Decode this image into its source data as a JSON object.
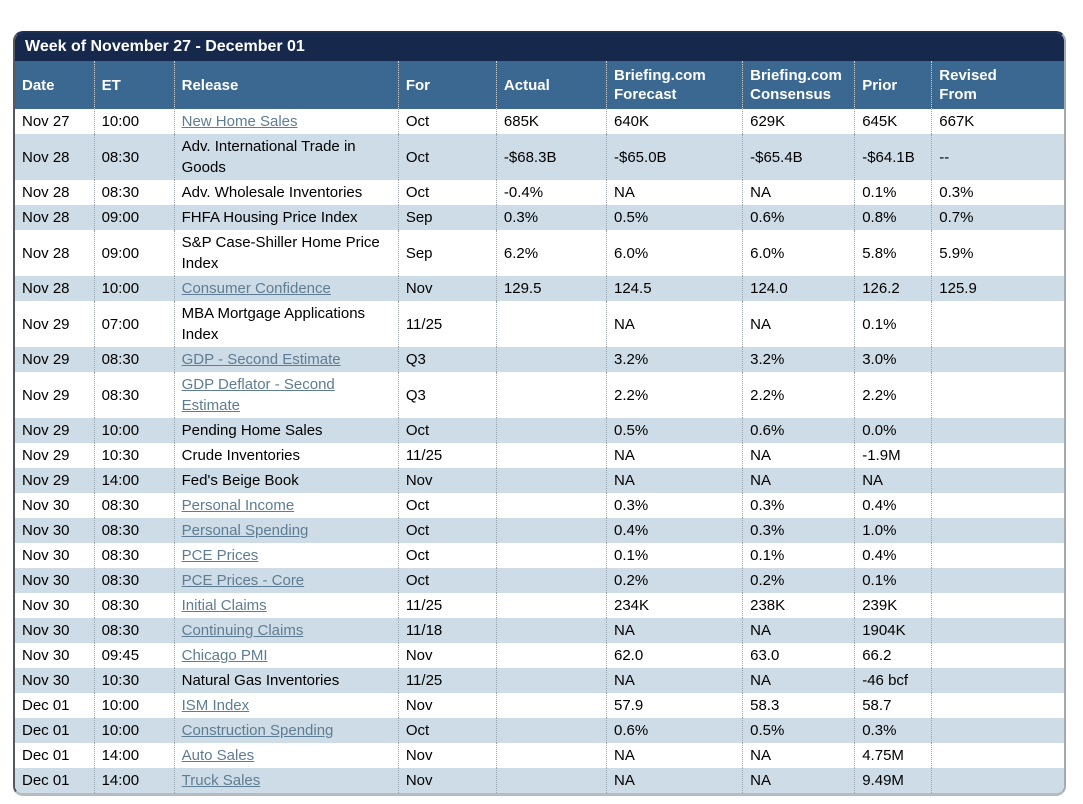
{
  "title": "Week of November 27 - December 01",
  "colors": {
    "title-bg": "#16294d",
    "header-bg": "#3b6890",
    "row-alt-bg": "#cddce7",
    "link": "#5f7d92"
  },
  "table": {
    "columns": [
      {
        "key": "date",
        "label": "Date"
      },
      {
        "key": "et",
        "label": "ET"
      },
      {
        "key": "release",
        "label": "Release"
      },
      {
        "key": "period",
        "label": "For"
      },
      {
        "key": "actual",
        "label": "Actual"
      },
      {
        "key": "forecast",
        "label": "Briefing.com\nForecast"
      },
      {
        "key": "consensus",
        "label": "Briefing.com\nConsensus"
      },
      {
        "key": "prior",
        "label": "Prior"
      },
      {
        "key": "revised",
        "label": "Revised\nFrom"
      }
    ],
    "rows": [
      {
        "date": "Nov 27",
        "et": "10:00",
        "release": "New Home Sales",
        "is_link": true,
        "period": "Oct",
        "actual": "685K",
        "forecast": "640K",
        "consensus": "629K",
        "prior": "645K",
        "revised": "667K"
      },
      {
        "date": "Nov 28",
        "et": "08:30",
        "release": "Adv. International Trade in Goods",
        "is_link": false,
        "period": "Oct",
        "actual": "-$68.3B",
        "forecast": "-$65.0B",
        "consensus": "-$65.4B",
        "prior": "-$64.1B",
        "revised": "--"
      },
      {
        "date": "Nov 28",
        "et": "08:30",
        "release": "Adv. Wholesale Inventories",
        "is_link": false,
        "period": "Oct",
        "actual": "-0.4%",
        "forecast": "NA",
        "consensus": "NA",
        "prior": "0.1%",
        "revised": "0.3%"
      },
      {
        "date": "Nov 28",
        "et": "09:00",
        "release": "FHFA Housing Price Index",
        "is_link": false,
        "period": "Sep",
        "actual": "0.3%",
        "forecast": "0.5%",
        "consensus": "0.6%",
        "prior": "0.8%",
        "revised": "0.7%"
      },
      {
        "date": "Nov 28",
        "et": "09:00",
        "release": "S&P Case-Shiller Home Price Index",
        "is_link": false,
        "period": "Sep",
        "actual": "6.2%",
        "forecast": "6.0%",
        "consensus": "6.0%",
        "prior": "5.8%",
        "revised": "5.9%"
      },
      {
        "date": "Nov 28",
        "et": "10:00",
        "release": "Consumer Confidence",
        "is_link": true,
        "period": "Nov",
        "actual": "129.5",
        "forecast": "124.5",
        "consensus": "124.0",
        "prior": "126.2",
        "revised": "125.9"
      },
      {
        "date": "Nov 29",
        "et": "07:00",
        "release": "MBA Mortgage Applications Index",
        "is_link": false,
        "period": "11/25",
        "actual": "",
        "forecast": "NA",
        "consensus": "NA",
        "prior": "0.1%",
        "revised": ""
      },
      {
        "date": "Nov 29",
        "et": "08:30",
        "release": "GDP - Second Estimate",
        "is_link": true,
        "period": "Q3",
        "actual": "",
        "forecast": "3.2%",
        "consensus": "3.2%",
        "prior": "3.0%",
        "revised": ""
      },
      {
        "date": "Nov 29",
        "et": "08:30",
        "release": "GDP Deflator - Second Estimate",
        "is_link": true,
        "period": "Q3",
        "actual": "",
        "forecast": "2.2%",
        "consensus": "2.2%",
        "prior": "2.2%",
        "revised": ""
      },
      {
        "date": "Nov 29",
        "et": "10:00",
        "release": "Pending Home Sales",
        "is_link": false,
        "period": "Oct",
        "actual": "",
        "forecast": "0.5%",
        "consensus": "0.6%",
        "prior": "0.0%",
        "revised": ""
      },
      {
        "date": "Nov 29",
        "et": "10:30",
        "release": "Crude Inventories",
        "is_link": false,
        "period": "11/25",
        "actual": "",
        "forecast": "NA",
        "consensus": "NA",
        "prior": "-1.9M",
        "revised": ""
      },
      {
        "date": "Nov 29",
        "et": "14:00",
        "release": "Fed's Beige Book",
        "is_link": false,
        "period": "Nov",
        "actual": "",
        "forecast": "NA",
        "consensus": "NA",
        "prior": "NA",
        "revised": ""
      },
      {
        "date": "Nov 30",
        "et": "08:30",
        "release": "Personal Income",
        "is_link": true,
        "period": "Oct",
        "actual": "",
        "forecast": "0.3%",
        "consensus": "0.3%",
        "prior": "0.4%",
        "revised": ""
      },
      {
        "date": "Nov 30",
        "et": "08:30",
        "release": "Personal Spending",
        "is_link": true,
        "period": "Oct",
        "actual": "",
        "forecast": "0.4%",
        "consensus": "0.3%",
        "prior": "1.0%",
        "revised": ""
      },
      {
        "date": "Nov 30",
        "et": "08:30",
        "release": "PCE Prices",
        "is_link": true,
        "period": "Oct",
        "actual": "",
        "forecast": "0.1%",
        "consensus": "0.1%",
        "prior": "0.4%",
        "revised": ""
      },
      {
        "date": "Nov 30",
        "et": "08:30",
        "release": "PCE Prices - Core",
        "is_link": true,
        "period": "Oct",
        "actual": "",
        "forecast": "0.2%",
        "consensus": "0.2%",
        "prior": "0.1%",
        "revised": ""
      },
      {
        "date": "Nov 30",
        "et": "08:30",
        "release": "Initial Claims",
        "is_link": true,
        "period": "11/25",
        "actual": "",
        "forecast": "234K",
        "consensus": "238K",
        "prior": "239K",
        "revised": ""
      },
      {
        "date": "Nov 30",
        "et": "08:30",
        "release": "Continuing Claims",
        "is_link": true,
        "period": "11/18",
        "actual": "",
        "forecast": "NA",
        "consensus": "NA",
        "prior": "1904K",
        "revised": ""
      },
      {
        "date": "Nov 30",
        "et": "09:45",
        "release": "Chicago PMI",
        "is_link": true,
        "period": "Nov",
        "actual": "",
        "forecast": "62.0",
        "consensus": "63.0",
        "prior": "66.2",
        "revised": ""
      },
      {
        "date": "Nov 30",
        "et": "10:30",
        "release": "Natural Gas Inventories",
        "is_link": false,
        "period": "11/25",
        "actual": "",
        "forecast": "NA",
        "consensus": "NA",
        "prior": "-46 bcf",
        "revised": ""
      },
      {
        "date": "Dec 01",
        "et": "10:00",
        "release": "ISM Index",
        "is_link": true,
        "period": "Nov",
        "actual": "",
        "forecast": "57.9",
        "consensus": "58.3",
        "prior": "58.7",
        "revised": ""
      },
      {
        "date": "Dec 01",
        "et": "10:00",
        "release": "Construction Spending",
        "is_link": true,
        "period": "Oct",
        "actual": "",
        "forecast": "0.6%",
        "consensus": "0.5%",
        "prior": "0.3%",
        "revised": ""
      },
      {
        "date": "Dec 01",
        "et": "14:00",
        "release": "Auto Sales",
        "is_link": true,
        "period": "Nov",
        "actual": "",
        "forecast": "NA",
        "consensus": "NA",
        "prior": "4.75M",
        "revised": ""
      },
      {
        "date": "Dec 01",
        "et": "14:00",
        "release": "Truck Sales",
        "is_link": true,
        "period": "Nov",
        "actual": "",
        "forecast": "NA",
        "consensus": "NA",
        "prior": "9.49M",
        "revised": ""
      }
    ]
  }
}
